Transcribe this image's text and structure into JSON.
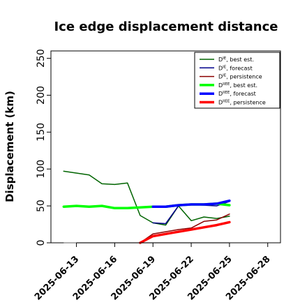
{
  "chart_data": {
    "type": "line",
    "title": "Ice edge displacement distance",
    "ylabel": "Displacement (km)",
    "xlabel": "",
    "ylim": [
      0,
      260
    ],
    "yticks": [
      0,
      50,
      100,
      150,
      200,
      250
    ],
    "xlim": [
      "2025-06-11",
      "2025-06-29"
    ],
    "xticks": [
      "2025-06-13",
      "2025-06-16",
      "2025-06-19",
      "2025-06-22",
      "2025-06-25",
      "2025-06-28"
    ],
    "highlight_xtick": "2025-06-19",
    "highlight_color": "#228b22",
    "legend_position": "top-right",
    "reference_line": {
      "y": 0,
      "from": "2025-06-12",
      "to": "2025-06-25",
      "color": "#808080"
    },
    "series": [
      {
        "name": "D^IE, best est.",
        "color": "#006400",
        "width": 1.5,
        "x": [
          "2025-06-12",
          "2025-06-14",
          "2025-06-15",
          "2025-06-16",
          "2025-06-17",
          "2025-06-18",
          "2025-06-19",
          "2025-06-20",
          "2025-06-21",
          "2025-06-22",
          "2025-06-23",
          "2025-06-24",
          "2025-06-25"
        ],
        "y": [
          97,
          92,
          80,
          79,
          81,
          37,
          27,
          24,
          50,
          30,
          35,
          33,
          36
        ]
      },
      {
        "name": "D^IE, forecast",
        "color": "#00008b",
        "width": 1.5,
        "x": [
          "2025-06-19",
          "2025-06-20",
          "2025-06-21",
          "2025-06-22",
          "2025-06-23",
          "2025-06-24",
          "2025-06-25"
        ],
        "y": [
          27,
          26,
          50,
          52,
          51,
          50,
          56
        ]
      },
      {
        "name": "D^IE, persistence",
        "color": "#8b0000",
        "width": 1.5,
        "x": [
          "2025-06-18",
          "2025-06-19",
          "2025-06-20",
          "2025-06-21",
          "2025-06-22",
          "2025-06-23",
          "2025-06-24",
          "2025-06-25"
        ],
        "y": [
          0,
          12,
          15,
          18,
          20,
          29,
          31,
          39
        ]
      },
      {
        "name": "D^IIEE, best est.",
        "color": "#00ff00",
        "width": 3.5,
        "x": [
          "2025-06-12",
          "2025-06-13",
          "2025-06-14",
          "2025-06-15",
          "2025-06-16",
          "2025-06-17",
          "2025-06-18",
          "2025-06-19",
          "2025-06-20",
          "2025-06-21",
          "2025-06-22",
          "2025-06-23",
          "2025-06-24",
          "2025-06-25"
        ],
        "y": [
          49,
          50,
          49,
          50,
          47,
          47,
          48,
          49,
          49,
          51,
          52,
          52,
          53,
          51
        ]
      },
      {
        "name": "D^IIEE, forecast",
        "color": "#0000ff",
        "width": 3.5,
        "x": [
          "2025-06-19",
          "2025-06-20",
          "2025-06-21",
          "2025-06-22",
          "2025-06-23",
          "2025-06-24",
          "2025-06-25"
        ],
        "y": [
          49,
          49,
          51,
          52,
          52,
          53,
          57
        ]
      },
      {
        "name": "D^IIEE, persistence",
        "color": "#ff0000",
        "width": 3.5,
        "x": [
          "2025-06-18",
          "2025-06-19",
          "2025-06-20",
          "2025-06-21",
          "2025-06-22",
          "2025-06-23",
          "2025-06-24",
          "2025-06-25"
        ],
        "y": [
          0,
          9,
          12,
          15,
          18,
          21,
          24,
          28
        ]
      }
    ],
    "legend_labels": [
      {
        "base": "D",
        "sup": "IE",
        "text": ", best est."
      },
      {
        "base": "D",
        "sup": "IE",
        "text": ", forecast"
      },
      {
        "base": "D",
        "sup": "IE",
        "text": ", persistence"
      },
      {
        "base": "D",
        "sup": "IIEE",
        "text": ", best est."
      },
      {
        "base": "D",
        "sup": "IIEE",
        "text": ", forecast"
      },
      {
        "base": "D",
        "sup": "IIEE",
        "text": ", persistence"
      }
    ]
  }
}
